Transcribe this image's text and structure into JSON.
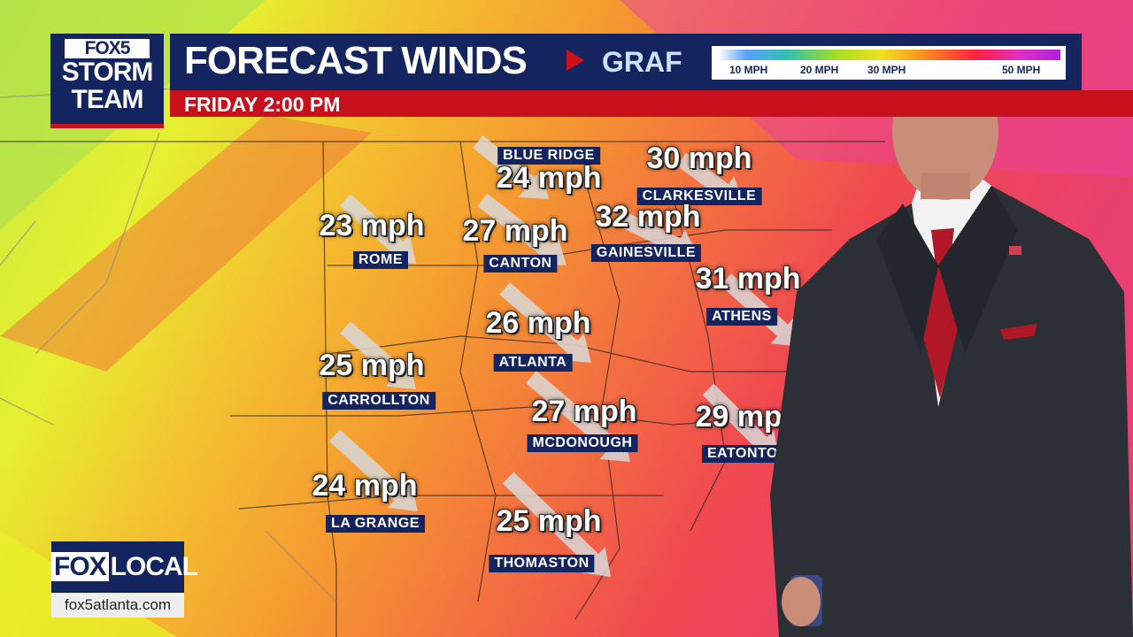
{
  "header": {
    "logo_line1": "FOX5",
    "logo_line2": "STORM",
    "logo_line3": "TEAM",
    "title": "FORECAST WINDS",
    "model": "GRAF",
    "subtitle": "FRIDAY 2:00 PM",
    "legend": {
      "labels": [
        "10 MPH",
        "20 MPH",
        "30 MPH",
        "50 MPH"
      ]
    }
  },
  "cities": [
    {
      "name": "BLUE RIDGE",
      "speed": "24 mph"
    },
    {
      "name": "CLARKESVILLE",
      "speed": "30 mph"
    },
    {
      "name": "ROME",
      "speed": "23 mph"
    },
    {
      "name": "CANTON",
      "speed": "27 mph"
    },
    {
      "name": "GAINESVILLE",
      "speed": "32 mph"
    },
    {
      "name": "ATHENS",
      "speed": "31 mph"
    },
    {
      "name": "ATLANTA",
      "speed": "26 mph"
    },
    {
      "name": "CARROLLTON",
      "speed": "25 mph"
    },
    {
      "name": "MCDONOUGH",
      "speed": "27 mph"
    },
    {
      "name": "EATONTON",
      "speed": "29 mph"
    },
    {
      "name": "LA GRANGE",
      "speed": "24 mph"
    },
    {
      "name": "THOMASTON",
      "speed": "25 mph"
    }
  ],
  "footer": {
    "brand_fox": "FOX",
    "brand_local": "LOCAL",
    "url": "fox5atlanta.com"
  },
  "colors": {
    "navy": "#13245e",
    "red": "#c8101c"
  }
}
